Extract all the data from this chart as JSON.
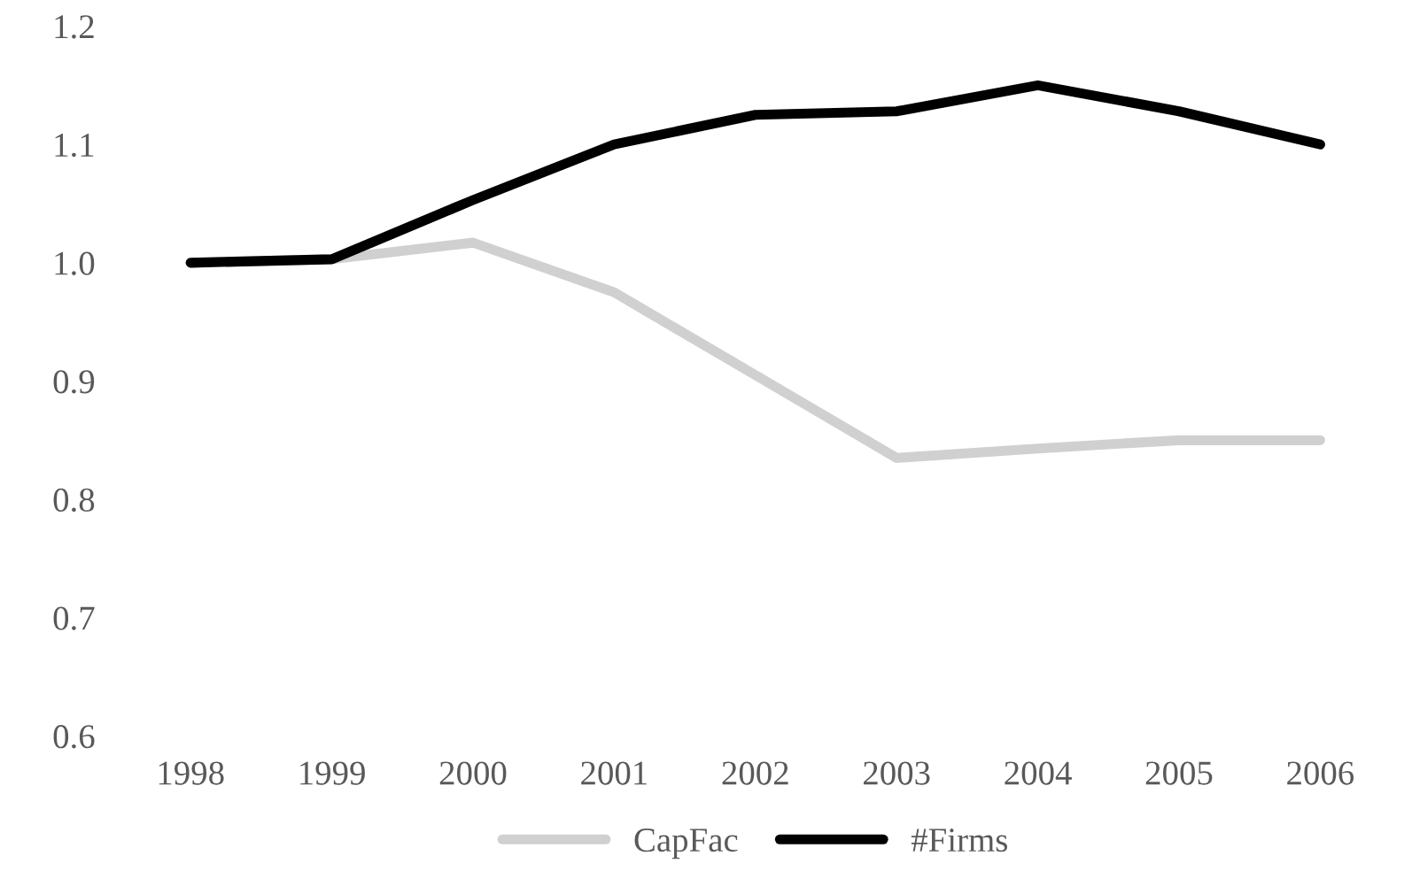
{
  "chart_data": {
    "type": "line",
    "categories": [
      "1998",
      "1999",
      "2000",
      "2001",
      "2002",
      "2003",
      "2004",
      "2005",
      "2006"
    ],
    "series": [
      {
        "name": "CapFac",
        "color": "#d0d0d0",
        "values": [
          1.0,
          1.003,
          1.017,
          0.975,
          0.905,
          0.835,
          0.843,
          0.85,
          0.85
        ]
      },
      {
        "name": "#Firms",
        "color": "#000000",
        "values": [
          1.0,
          1.003,
          1.053,
          1.1,
          1.125,
          1.128,
          1.15,
          1.128,
          1.1
        ]
      }
    ],
    "ylim": [
      0.6,
      1.2
    ],
    "yticks": [
      {
        "value": 0.6,
        "label": "0.6"
      },
      {
        "value": 0.7,
        "label": "0.7"
      },
      {
        "value": 0.8,
        "label": "0.8"
      },
      {
        "value": 0.9,
        "label": "0.9"
      },
      {
        "value": 1.0,
        "label": "1.0"
      },
      {
        "value": 1.1,
        "label": "1.1"
      },
      {
        "value": 1.2,
        "label": "1.2"
      }
    ],
    "grid": false,
    "legend": "bottom",
    "marker": "none",
    "line_style": "solid"
  }
}
